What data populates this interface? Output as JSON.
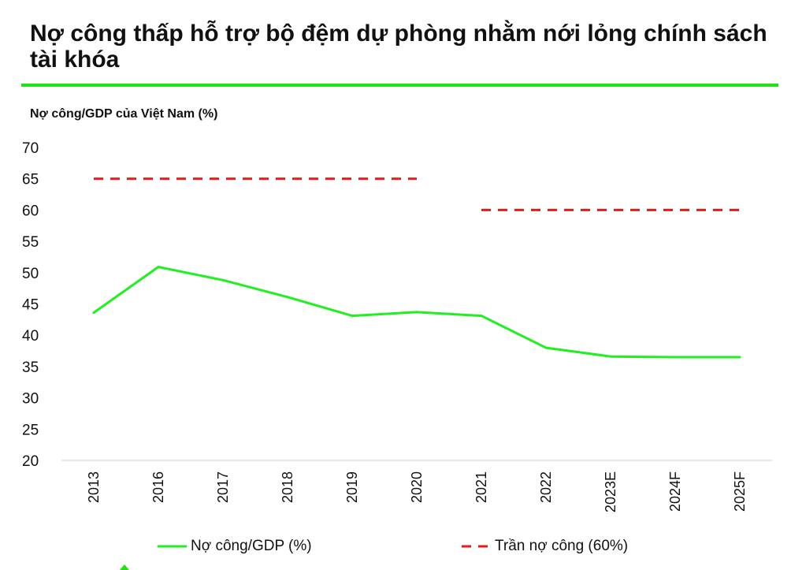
{
  "chart_data": {
    "type": "line",
    "title": "Nợ công thấp hỗ trợ bộ đệm dự phòng nhằm nới lỏng chính sách tài khóa",
    "subtitle": "Nợ công/GDP của Việt Nam (%)",
    "categories": [
      "2013",
      "2016",
      "2017",
      "2018",
      "2019",
      "2020",
      "2021",
      "2022",
      "2023E",
      "2024F",
      "2025F"
    ],
    "ylim": [
      20,
      70
    ],
    "yticks": [
      20,
      25,
      30,
      35,
      40,
      45,
      50,
      55,
      60,
      65,
      70
    ],
    "grid": false,
    "legend_position": "bottom",
    "series": [
      {
        "name": "Nợ công/GDP (%)",
        "style": "solid",
        "color": "#22ee22",
        "values": [
          43.6,
          50.9,
          48.8,
          46.1,
          43.1,
          43.7,
          43.1,
          38.0,
          36.6,
          36.5,
          36.5
        ]
      },
      {
        "name": "Trần nợ công (60%)",
        "style": "dashed",
        "color": "#e31a1a",
        "segments": [
          {
            "from": "2013",
            "to": "2020",
            "value": 65
          },
          {
            "from": "2021",
            "to": "2025F",
            "value": 60
          }
        ]
      }
    ]
  },
  "colors": {
    "accent_rule": "#22e012",
    "axis": "#d0d0d0"
  }
}
